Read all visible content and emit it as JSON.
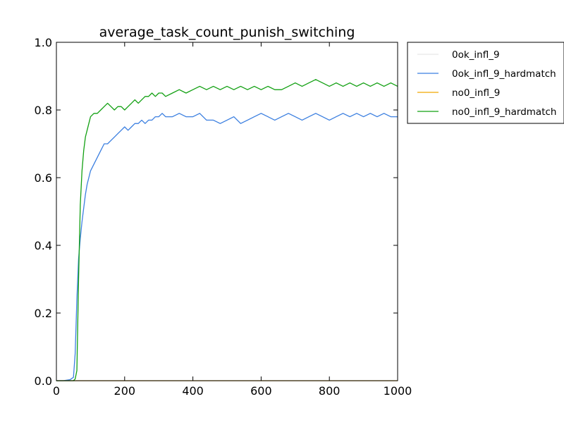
{
  "chart_data": {
    "type": "line",
    "title": "average_task_count_punish_switching",
    "xlabel": "",
    "ylabel": "",
    "xlim": [
      0,
      1000
    ],
    "ylim": [
      0.0,
      1.0
    ],
    "x_ticks": [
      0,
      200,
      400,
      600,
      800,
      1000
    ],
    "x_tick_labels": [
      "0",
      "200",
      "400",
      "600",
      "800",
      "1000"
    ],
    "y_ticks": [
      0.0,
      0.2,
      0.4,
      0.6,
      0.8,
      1.0
    ],
    "y_tick_labels": [
      "0.0",
      "0.2",
      "0.4",
      "0.6",
      "0.8",
      "1.0"
    ],
    "grid": false,
    "legend_position": "outside-top-right",
    "series": [
      {
        "name": "0ok_infl_9",
        "color": "#e8e8e8",
        "x": [
          0,
          1000
        ],
        "y": [
          0.0,
          0.0
        ]
      },
      {
        "name": "0ok_infl_9_hardmatch",
        "color": "#3b7fe0",
        "x": [
          0,
          20,
          40,
          50,
          55,
          60,
          65,
          70,
          75,
          80,
          85,
          90,
          95,
          100,
          110,
          120,
          130,
          140,
          150,
          160,
          170,
          180,
          190,
          200,
          210,
          220,
          230,
          240,
          250,
          260,
          270,
          280,
          290,
          300,
          310,
          320,
          340,
          360,
          380,
          400,
          420,
          440,
          460,
          480,
          500,
          520,
          540,
          560,
          580,
          600,
          620,
          640,
          660,
          680,
          700,
          720,
          740,
          760,
          780,
          800,
          820,
          840,
          860,
          880,
          900,
          920,
          940,
          960,
          980,
          1000
        ],
        "y": [
          0.0,
          0.0,
          0.003,
          0.01,
          0.08,
          0.24,
          0.36,
          0.42,
          0.47,
          0.51,
          0.55,
          0.58,
          0.6,
          0.62,
          0.64,
          0.66,
          0.68,
          0.7,
          0.7,
          0.71,
          0.72,
          0.73,
          0.74,
          0.75,
          0.74,
          0.75,
          0.76,
          0.76,
          0.77,
          0.76,
          0.77,
          0.77,
          0.78,
          0.78,
          0.79,
          0.78,
          0.78,
          0.79,
          0.78,
          0.78,
          0.79,
          0.77,
          0.77,
          0.76,
          0.77,
          0.78,
          0.76,
          0.77,
          0.78,
          0.79,
          0.78,
          0.77,
          0.78,
          0.79,
          0.78,
          0.77,
          0.78,
          0.79,
          0.78,
          0.77,
          0.78,
          0.79,
          0.78,
          0.79,
          0.78,
          0.79,
          0.78,
          0.79,
          0.78,
          0.78
        ]
      },
      {
        "name": "no0_infl_9",
        "color": "#f0a800",
        "x": [
          0,
          1000
        ],
        "y": [
          0.0,
          0.0
        ]
      },
      {
        "name": "no0_infl_9_hardmatch",
        "color": "#12a012",
        "x": [
          0,
          20,
          40,
          50,
          55,
          60,
          65,
          70,
          75,
          80,
          85,
          90,
          95,
          100,
          110,
          120,
          130,
          140,
          150,
          160,
          170,
          180,
          190,
          200,
          210,
          220,
          230,
          240,
          250,
          260,
          270,
          280,
          290,
          300,
          310,
          320,
          340,
          360,
          380,
          400,
          420,
          440,
          460,
          480,
          500,
          520,
          540,
          560,
          580,
          600,
          620,
          640,
          660,
          680,
          700,
          720,
          740,
          760,
          780,
          800,
          820,
          840,
          860,
          880,
          900,
          920,
          940,
          960,
          980,
          1000
        ],
        "y": [
          0.0,
          0.0,
          0.0,
          0.0,
          0.005,
          0.03,
          0.3,
          0.52,
          0.62,
          0.68,
          0.72,
          0.74,
          0.76,
          0.78,
          0.79,
          0.79,
          0.8,
          0.81,
          0.82,
          0.81,
          0.8,
          0.81,
          0.81,
          0.8,
          0.81,
          0.82,
          0.83,
          0.82,
          0.83,
          0.84,
          0.84,
          0.85,
          0.84,
          0.85,
          0.85,
          0.84,
          0.85,
          0.86,
          0.85,
          0.86,
          0.87,
          0.86,
          0.87,
          0.86,
          0.87,
          0.86,
          0.87,
          0.86,
          0.87,
          0.86,
          0.87,
          0.86,
          0.86,
          0.87,
          0.88,
          0.87,
          0.88,
          0.89,
          0.88,
          0.87,
          0.88,
          0.87,
          0.88,
          0.87,
          0.88,
          0.87,
          0.88,
          0.87,
          0.88,
          0.87
        ]
      }
    ]
  }
}
